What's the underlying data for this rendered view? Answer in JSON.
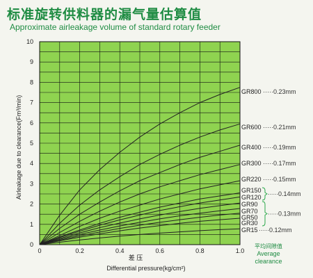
{
  "title_cn": "标准旋转供料器的漏气量估算值",
  "title_en": "Approximate airleakage volume of standard rotary feeder",
  "colors": {
    "title": "#1f8c43",
    "plot_bg": "#8fd350",
    "grid": "#111111",
    "line": "#222222",
    "bracket": "#2aa84a",
    "page_bg": "#f4f5ef"
  },
  "chart_data": {
    "type": "line",
    "title": "Approximate airleakage volume of standard rotary feeder",
    "xlabel": "Differential pressure(kg/cm²)",
    "xlabel_cn": "差  压",
    "ylabel": "Airleakage due to clearance(Fm³/min)",
    "xlim": [
      0,
      1.0
    ],
    "ylim": [
      0,
      10
    ],
    "x_ticks": [
      "0",
      "0.2",
      "0.4",
      "0.6",
      "0.8",
      "1.0"
    ],
    "x_tick_values": [
      0,
      0.2,
      0.4,
      0.6,
      0.8,
      1.0
    ],
    "y_ticks": [
      "0",
      "1",
      "2",
      "3",
      "4",
      "5",
      "6",
      "7",
      "8",
      "9",
      "10"
    ],
    "y_tick_values": [
      0,
      1,
      2,
      3,
      4,
      5,
      6,
      7,
      8,
      9,
      10
    ],
    "grid": true,
    "x": [
      0,
      0.1,
      0.2,
      0.3,
      0.4,
      0.5,
      0.6,
      0.7,
      0.8,
      0.9,
      1.0
    ],
    "series": [
      {
        "name": "GR800",
        "clearance": "0.23mm",
        "values": [
          0,
          1.45,
          2.7,
          3.7,
          4.55,
          5.3,
          5.95,
          6.5,
          7.0,
          7.4,
          7.75
        ]
      },
      {
        "name": "GR600",
        "clearance": "0.21mm",
        "values": [
          0,
          1.05,
          1.95,
          2.7,
          3.35,
          3.95,
          4.45,
          4.9,
          5.3,
          5.65,
          5.95
        ]
      },
      {
        "name": "GR400",
        "clearance": "0.19mm",
        "values": [
          0,
          0.8,
          1.5,
          2.1,
          2.65,
          3.15,
          3.55,
          3.95,
          4.3,
          4.6,
          4.9
        ]
      },
      {
        "name": "GR300",
        "clearance": "0.17mm",
        "values": [
          0,
          0.6,
          1.15,
          1.65,
          2.1,
          2.5,
          2.85,
          3.15,
          3.45,
          3.7,
          3.95
        ]
      },
      {
        "name": "GR220",
        "clearance": "0.15mm",
        "values": [
          0,
          0.45,
          0.9,
          1.3,
          1.65,
          1.95,
          2.25,
          2.5,
          2.75,
          2.95,
          3.15
        ]
      },
      {
        "name": "GR150",
        "clearance": "",
        "values": [
          0,
          0.38,
          0.72,
          1.05,
          1.35,
          1.6,
          1.85,
          2.05,
          2.25,
          2.4,
          2.55
        ]
      },
      {
        "name": "GR120",
        "clearance": "",
        "values": [
          0,
          0.35,
          0.66,
          0.96,
          1.22,
          1.46,
          1.68,
          1.87,
          2.05,
          2.2,
          2.35
        ]
      },
      {
        "name": "GR90",
        "clearance": "",
        "values": [
          0,
          0.3,
          0.58,
          0.84,
          1.06,
          1.27,
          1.46,
          1.63,
          1.79,
          1.92,
          2.05
        ]
      },
      {
        "name": "GR70",
        "clearance": "",
        "values": [
          0,
          0.26,
          0.5,
          0.72,
          0.92,
          1.1,
          1.27,
          1.42,
          1.55,
          1.67,
          1.78
        ]
      },
      {
        "name": "GR50",
        "clearance": "",
        "values": [
          0,
          0.22,
          0.43,
          0.62,
          0.8,
          0.96,
          1.1,
          1.23,
          1.35,
          1.46,
          1.55
        ]
      },
      {
        "name": "GR30",
        "clearance": "",
        "values": [
          0,
          0.19,
          0.37,
          0.53,
          0.68,
          0.82,
          0.94,
          1.05,
          1.15,
          1.23,
          1.3
        ]
      },
      {
        "name": "GR15",
        "clearance": "0.12mm",
        "values": [
          0,
          0.12,
          0.23,
          0.33,
          0.42,
          0.5,
          0.57,
          0.63,
          0.69,
          0.74,
          0.78
        ]
      }
    ],
    "group_labels": [
      {
        "members": [
          "GR150",
          "GR120"
        ],
        "clearance": "0.14mm"
      },
      {
        "members": [
          "GR90",
          "GR70",
          "GR50",
          "GR30"
        ],
        "clearance": "0.13mm"
      }
    ],
    "average_clearance_cn": "平均间隙值",
    "average_clearance_en_1": "Average",
    "average_clearance_en_2": "clearance"
  }
}
